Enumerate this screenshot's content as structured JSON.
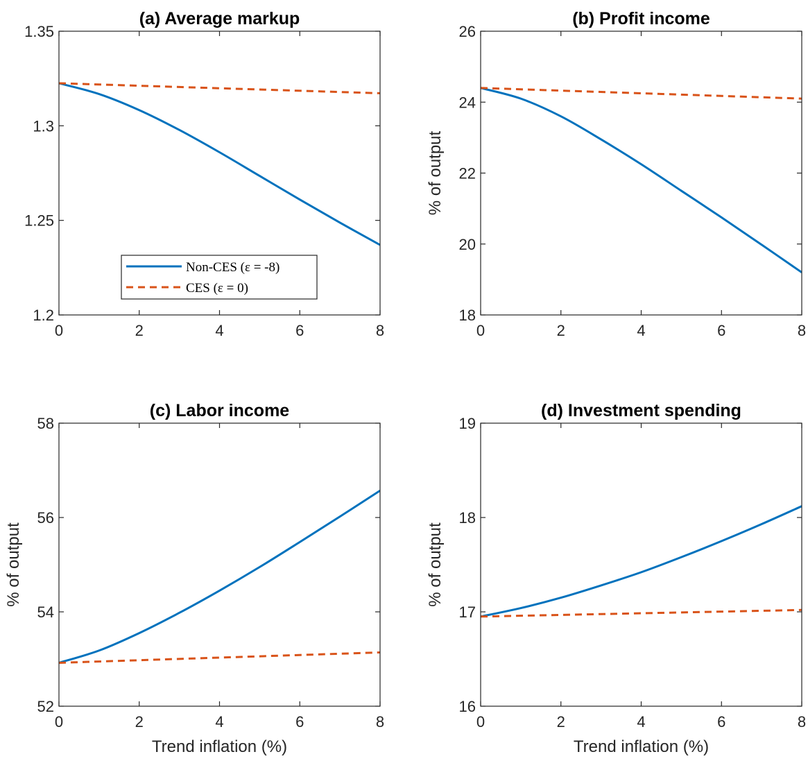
{
  "legend": {
    "entries": [
      {
        "label": "Non-CES (ε = -8)",
        "color": "#0072BD",
        "dash": "solid"
      },
      {
        "label": "CES (ε = 0)",
        "color": "#D95319",
        "dash": "dashed"
      }
    ],
    "placement": "lower-left of panel (a)"
  },
  "chart_data": [
    {
      "type": "line",
      "panel": "a",
      "title": "(a) Average markup",
      "xlabel": "",
      "ylabel": "",
      "xlim": [
        0,
        8
      ],
      "ylim": [
        1.2,
        1.35
      ],
      "xticks": [
        0,
        2,
        4,
        6,
        8
      ],
      "yticks": [
        1.2,
        1.25,
        1.3,
        1.35
      ],
      "ytick_labels": [
        "1.2",
        "1.25",
        "1.3",
        "1.35"
      ],
      "grid": false,
      "series": [
        {
          "name": "Non-CES (ε = -8)",
          "x": [
            0,
            1,
            2,
            3,
            4,
            5,
            6,
            7,
            8
          ],
          "values": [
            1.3225,
            1.3168,
            1.3083,
            1.2978,
            1.286,
            1.2735,
            1.261,
            1.2488,
            1.237
          ]
        },
        {
          "name": "CES (ε = 0)",
          "x": [
            0,
            8
          ],
          "values": [
            1.3225,
            1.3172
          ]
        }
      ]
    },
    {
      "type": "line",
      "panel": "b",
      "title": "(b) Profit income",
      "xlabel": "",
      "ylabel": "% of output",
      "xlim": [
        0,
        8
      ],
      "ylim": [
        18,
        26
      ],
      "xticks": [
        0,
        2,
        4,
        6,
        8
      ],
      "yticks": [
        18,
        20,
        22,
        24,
        26
      ],
      "ytick_labels": [
        "18",
        "20",
        "22",
        "24",
        "26"
      ],
      "grid": false,
      "series": [
        {
          "name": "Non-CES (ε = -8)",
          "x": [
            0,
            1,
            2,
            3,
            4,
            5,
            6,
            7,
            8
          ],
          "values": [
            24.4,
            24.1,
            23.6,
            22.95,
            22.25,
            21.5,
            20.75,
            19.98,
            19.2
          ]
        },
        {
          "name": "CES (ε = 0)",
          "x": [
            0,
            8
          ],
          "values": [
            24.4,
            24.1
          ]
        }
      ]
    },
    {
      "type": "line",
      "panel": "c",
      "title": "(c) Labor income",
      "xlabel": "Trend inflation (%)",
      "ylabel": "% of output",
      "xlim": [
        0,
        8
      ],
      "ylim": [
        52,
        58
      ],
      "xticks": [
        0,
        2,
        4,
        6,
        8
      ],
      "yticks": [
        52,
        54,
        56,
        58
      ],
      "ytick_labels": [
        "52",
        "54",
        "56",
        "58"
      ],
      "grid": false,
      "series": [
        {
          "name": "Non-CES (ε = -8)",
          "x": [
            0,
            1,
            2,
            3,
            4,
            5,
            6,
            7,
            8
          ],
          "values": [
            52.92,
            53.18,
            53.55,
            53.98,
            54.45,
            54.95,
            55.48,
            56.02,
            56.57
          ]
        },
        {
          "name": "CES (ε = 0)",
          "x": [
            0,
            8
          ],
          "values": [
            52.92,
            53.14
          ]
        }
      ]
    },
    {
      "type": "line",
      "panel": "d",
      "title": "(d) Investment spending",
      "xlabel": "Trend inflation (%)",
      "ylabel": "% of output",
      "xlim": [
        0,
        8
      ],
      "ylim": [
        16,
        19
      ],
      "xticks": [
        0,
        2,
        4,
        6,
        8
      ],
      "yticks": [
        16,
        17,
        18,
        19
      ],
      "ytick_labels": [
        "16",
        "17",
        "18",
        "19"
      ],
      "grid": false,
      "series": [
        {
          "name": "Non-CES (ε = -8)",
          "x": [
            0,
            1,
            2,
            3,
            4,
            5,
            6,
            7,
            8
          ],
          "values": [
            16.95,
            17.04,
            17.15,
            17.28,
            17.42,
            17.58,
            17.75,
            17.93,
            18.12
          ]
        },
        {
          "name": "CES (ε = 0)",
          "x": [
            0,
            8
          ],
          "values": [
            16.95,
            17.02
          ]
        }
      ]
    }
  ]
}
